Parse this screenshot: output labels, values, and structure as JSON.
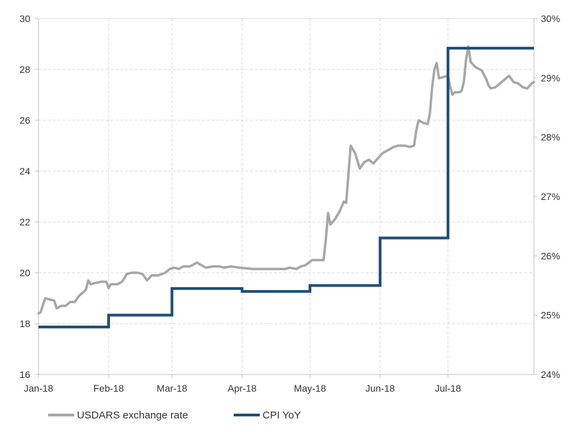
{
  "chart_data": {
    "type": "line",
    "title": "",
    "xlabel": "",
    "ylabel": "",
    "x_ticks": [
      "Jan-18",
      "Feb-18",
      "Mar-18",
      "Apr-18",
      "May-18",
      "Jun-18",
      "Jul-18"
    ],
    "y_left": {
      "lim": [
        16,
        30
      ],
      "ticks": [
        "16",
        "18",
        "20",
        "22",
        "24",
        "26",
        "28",
        "30"
      ]
    },
    "y_right": {
      "lim": [
        24,
        30
      ],
      "ticks": [
        "24%",
        "25%",
        "26%",
        "27%",
        "28%",
        "29%",
        "30%"
      ]
    },
    "grid": true,
    "legend_position": "bottom-left",
    "colors": {
      "usdars": "#a6a6a6",
      "cpi": "#1f4e79"
    },
    "series": [
      {
        "name": "USDARS exchange rate",
        "axis": "left",
        "points": [
          [
            "2018-01-01",
            18.4
          ],
          [
            "2018-01-02",
            18.45
          ],
          [
            "2018-01-03",
            18.75
          ],
          [
            "2018-01-04",
            19.0
          ],
          [
            "2018-01-06",
            18.95
          ],
          [
            "2018-01-08",
            18.9
          ],
          [
            "2018-01-09",
            18.6
          ],
          [
            "2018-01-11",
            18.7
          ],
          [
            "2018-01-13",
            18.7
          ],
          [
            "2018-01-15",
            18.85
          ],
          [
            "2018-01-17",
            18.85
          ],
          [
            "2018-01-19",
            19.1
          ],
          [
            "2018-01-21",
            19.25
          ],
          [
            "2018-01-22",
            19.35
          ],
          [
            "2018-01-23",
            19.7
          ],
          [
            "2018-01-24",
            19.55
          ],
          [
            "2018-01-26",
            19.6
          ],
          [
            "2018-01-29",
            19.65
          ],
          [
            "2018-01-31",
            19.65
          ],
          [
            "2018-02-01",
            19.4
          ],
          [
            "2018-02-02",
            19.55
          ],
          [
            "2018-02-05",
            19.55
          ],
          [
            "2018-02-07",
            19.65
          ],
          [
            "2018-02-09",
            19.95
          ],
          [
            "2018-02-11",
            20.0
          ],
          [
            "2018-02-14",
            20.0
          ],
          [
            "2018-02-16",
            19.95
          ],
          [
            "2018-02-18",
            19.7
          ],
          [
            "2018-02-20",
            19.9
          ],
          [
            "2018-02-23",
            19.9
          ],
          [
            "2018-02-26",
            20.0
          ],
          [
            "2018-02-28",
            20.15
          ],
          [
            "2018-03-02",
            20.2
          ],
          [
            "2018-03-04",
            20.15
          ],
          [
            "2018-03-06",
            20.25
          ],
          [
            "2018-03-09",
            20.25
          ],
          [
            "2018-03-12",
            20.4
          ],
          [
            "2018-03-14",
            20.3
          ],
          [
            "2018-03-16",
            20.2
          ],
          [
            "2018-03-19",
            20.25
          ],
          [
            "2018-03-22",
            20.25
          ],
          [
            "2018-03-24",
            20.2
          ],
          [
            "2018-03-27",
            20.25
          ],
          [
            "2018-03-31",
            20.2
          ],
          [
            "2018-04-06",
            20.15
          ],
          [
            "2018-04-12",
            20.15
          ],
          [
            "2018-04-17",
            20.15
          ],
          [
            "2018-04-20",
            20.15
          ],
          [
            "2018-04-22",
            20.2
          ],
          [
            "2018-04-25",
            20.15
          ],
          [
            "2018-04-27",
            20.25
          ],
          [
            "2018-04-29",
            20.3
          ],
          [
            "2018-05-02",
            20.5
          ],
          [
            "2018-05-04",
            20.5
          ],
          [
            "2018-05-07",
            20.5
          ],
          [
            "2018-05-08",
            21.3
          ],
          [
            "2018-05-09",
            22.35
          ],
          [
            "2018-05-10",
            21.9
          ],
          [
            "2018-05-12",
            22.1
          ],
          [
            "2018-05-14",
            22.4
          ],
          [
            "2018-05-16",
            22.8
          ],
          [
            "2018-05-17",
            22.75
          ],
          [
            "2018-05-19",
            25.0
          ],
          [
            "2018-05-21",
            24.7
          ],
          [
            "2018-05-23",
            24.1
          ],
          [
            "2018-05-25",
            24.35
          ],
          [
            "2018-05-27",
            24.45
          ],
          [
            "2018-05-29",
            24.3
          ],
          [
            "2018-05-31",
            24.5
          ],
          [
            "2018-06-02",
            24.7
          ],
          [
            "2018-06-05",
            24.85
          ],
          [
            "2018-06-07",
            24.95
          ],
          [
            "2018-06-09",
            25.0
          ],
          [
            "2018-06-12",
            25.0
          ],
          [
            "2018-06-14",
            24.95
          ],
          [
            "2018-06-16",
            25.0
          ],
          [
            "2018-06-17",
            25.6
          ],
          [
            "2018-06-18",
            26.0
          ],
          [
            "2018-06-20",
            25.9
          ],
          [
            "2018-06-22",
            25.85
          ],
          [
            "2018-06-23",
            26.25
          ],
          [
            "2018-06-24",
            27.3
          ],
          [
            "2018-06-25",
            28.0
          ],
          [
            "2018-06-26",
            28.25
          ],
          [
            "2018-06-27",
            27.65
          ],
          [
            "2018-06-29",
            27.7
          ],
          [
            "2018-07-01",
            27.75
          ],
          [
            "2018-07-02",
            27.3
          ],
          [
            "2018-07-03",
            27.0
          ],
          [
            "2018-07-04",
            27.1
          ],
          [
            "2018-07-06",
            27.1
          ],
          [
            "2018-07-07",
            27.15
          ],
          [
            "2018-07-08",
            27.5
          ],
          [
            "2018-07-09",
            28.4
          ],
          [
            "2018-07-10",
            28.9
          ],
          [
            "2018-07-11",
            28.3
          ],
          [
            "2018-07-13",
            28.1
          ],
          [
            "2018-07-15",
            28.0
          ],
          [
            "2018-07-16",
            27.95
          ],
          [
            "2018-07-18",
            27.6
          ],
          [
            "2018-07-19",
            27.35
          ],
          [
            "2018-07-20",
            27.25
          ],
          [
            "2018-07-22",
            27.3
          ],
          [
            "2018-07-24",
            27.45
          ],
          [
            "2018-07-26",
            27.6
          ],
          [
            "2018-07-28",
            27.75
          ],
          [
            "2018-07-30",
            27.5
          ],
          [
            "2018-08-01",
            27.45
          ],
          [
            "2018-08-03",
            27.3
          ],
          [
            "2018-08-05",
            27.25
          ],
          [
            "2018-08-07",
            27.45
          ],
          [
            "2018-08-08",
            27.5
          ]
        ]
      },
      {
        "name": "CPI YoY",
        "axis": "right",
        "step": true,
        "points": [
          [
            "2018-01-01",
            24.8
          ],
          [
            "2018-01-31",
            24.8
          ],
          [
            "2018-02-01",
            25.0
          ],
          [
            "2018-02-28",
            25.0
          ],
          [
            "2018-03-01",
            25.45
          ],
          [
            "2018-03-31",
            25.45
          ],
          [
            "2018-04-01",
            25.4
          ],
          [
            "2018-04-30",
            25.4
          ],
          [
            "2018-05-01",
            25.5
          ],
          [
            "2018-05-31",
            25.5
          ],
          [
            "2018-06-01",
            26.3
          ],
          [
            "2018-06-30",
            26.3
          ],
          [
            "2018-07-01",
            29.5
          ],
          [
            "2018-08-08",
            29.5
          ]
        ]
      }
    ]
  }
}
